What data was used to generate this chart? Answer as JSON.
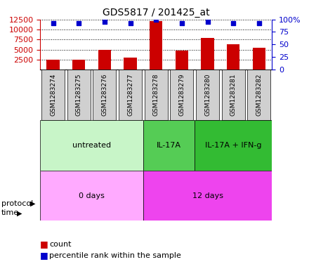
{
  "title": "GDS5817 / 201425_at",
  "samples": [
    "GSM1283274",
    "GSM1283275",
    "GSM1283276",
    "GSM1283277",
    "GSM1283278",
    "GSM1283279",
    "GSM1283280",
    "GSM1283281",
    "GSM1283282"
  ],
  "counts": [
    2500,
    2500,
    5000,
    3000,
    12000,
    4800,
    7900,
    6300,
    5400
  ],
  "percentile_ranks": [
    93,
    93,
    95,
    92,
    100,
    93,
    95,
    93,
    93
  ],
  "ylim_left": [
    0,
    12500
  ],
  "ylim_right": [
    0,
    100
  ],
  "yticks_left": [
    2500,
    5000,
    7500,
    10000,
    12500
  ],
  "yticks_right": [
    0,
    25,
    50,
    75,
    100
  ],
  "ytick_right_labels": [
    "0",
    "25",
    "50",
    "75",
    "100%"
  ],
  "bar_color": "#cc0000",
  "dot_color": "#0000cc",
  "protocol_groups": [
    {
      "label": "untreated",
      "start": 0,
      "end": 4,
      "color": "#c8f5c8"
    },
    {
      "label": "IL-17A",
      "start": 4,
      "end": 6,
      "color": "#55cc55"
    },
    {
      "label": "IL-17A + IFN-g",
      "start": 6,
      "end": 9,
      "color": "#33bb33"
    }
  ],
  "time_groups": [
    {
      "label": "0 days",
      "start": 0,
      "end": 4,
      "color": "#ffaaff"
    },
    {
      "label": "12 days",
      "start": 4,
      "end": 9,
      "color": "#ee44ee"
    }
  ],
  "protocol_label": "protocol",
  "time_label": "time",
  "legend_count": "count",
  "legend_percentile": "percentile rank within the sample",
  "axis_left_color": "#cc0000",
  "axis_right_color": "#0000cc",
  "sample_box_color": "#d0d0d0"
}
